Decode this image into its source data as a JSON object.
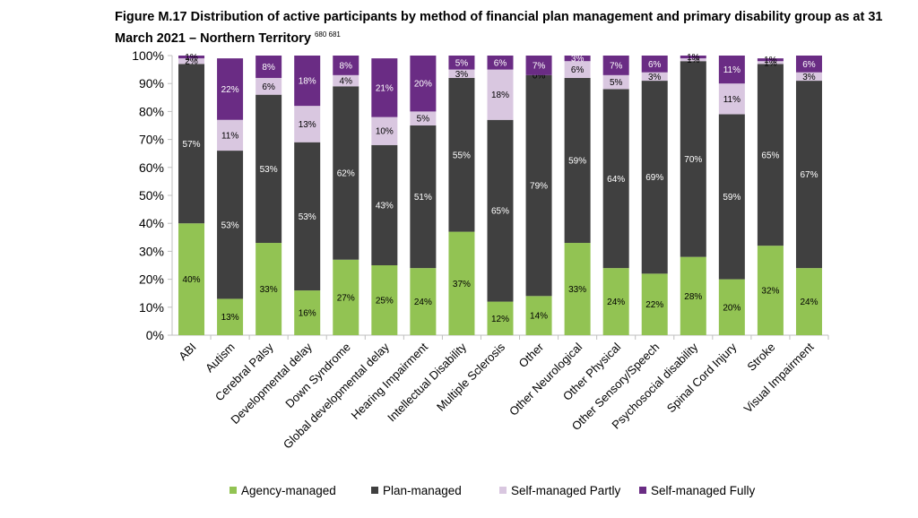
{
  "title": {
    "text": "Figure M.17 Distribution of active participants by method of financial plan management and primary disability group as at 31 March 2021 – Northern Territory",
    "footnote": "680 681"
  },
  "chart_data": {
    "type": "bar",
    "stacked": true,
    "categories": [
      "ABI",
      "Autism",
      "Cerebral Palsy",
      "Developmental delay",
      "Down Syndrome",
      "Global developmental delay",
      "Hearing Impairment",
      "Intellectual Disability",
      "Multiple Sclerosis",
      "Other",
      "Other Neurological",
      "Other Physical",
      "Other Sensory/Speech",
      "Psychosocial disability",
      "Spinal Cord Injury",
      "Stroke",
      "Visual Impairment"
    ],
    "series": [
      {
        "name": "Agency-managed",
        "color": "#92c353",
        "values": [
          40,
          13,
          33,
          16,
          27,
          25,
          24,
          37,
          12,
          14,
          33,
          24,
          22,
          28,
          20,
          32,
          24
        ],
        "labels": [
          "40%",
          "13%",
          "33%",
          "16%",
          "27%",
          "25%",
          "24%",
          "37%",
          "12%",
          "14%",
          "33%",
          "24%",
          "22%",
          "28%",
          "20%",
          "32%",
          "24%"
        ]
      },
      {
        "name": "Plan-managed",
        "color": "#404040",
        "values": [
          57,
          53,
          53,
          53,
          62,
          43,
          51,
          55,
          65,
          79,
          59,
          64,
          69,
          70,
          59,
          65,
          67
        ],
        "labels": [
          "57%",
          "53%",
          "53%",
          "53%",
          "62%",
          "43%",
          "51%",
          "55%",
          "65%",
          "79%",
          "59%",
          "64%",
          "69%",
          "70%",
          "59%",
          "65%",
          "67%"
        ]
      },
      {
        "name": "Self-managed Partly",
        "color": "#d9c7e0",
        "values": [
          2,
          11,
          6,
          13,
          4,
          10,
          5,
          3,
          18,
          0,
          6,
          5,
          3,
          1,
          11,
          1,
          3
        ],
        "labels": [
          "2%",
          "11%",
          "6%",
          "13%",
          "4%",
          "10%",
          "5%",
          "3%",
          "18%",
          "0%",
          "6%",
          "5%",
          "3%",
          "1%",
          "11%",
          "1%",
          "3%"
        ]
      },
      {
        "name": "Self-managed Fully",
        "color": "#6a2c84",
        "values": [
          1,
          22,
          8,
          18,
          8,
          21,
          20,
          5,
          6,
          7,
          3,
          7,
          6,
          1,
          11,
          1,
          6
        ],
        "labels": [
          "1%",
          "22%",
          "8%",
          "18%",
          "8%",
          "21%",
          "20%",
          "5%",
          "6%",
          "7%",
          "3%",
          "7%",
          "6%",
          "1%",
          "11%",
          "1%",
          "6%"
        ]
      }
    ],
    "ylim": [
      0,
      100
    ],
    "ytick_labels": [
      "0%",
      "10%",
      "20%",
      "30%",
      "40%",
      "50%",
      "60%",
      "70%",
      "80%",
      "90%",
      "100%"
    ],
    "grid": false,
    "legend_position": "bottom"
  }
}
